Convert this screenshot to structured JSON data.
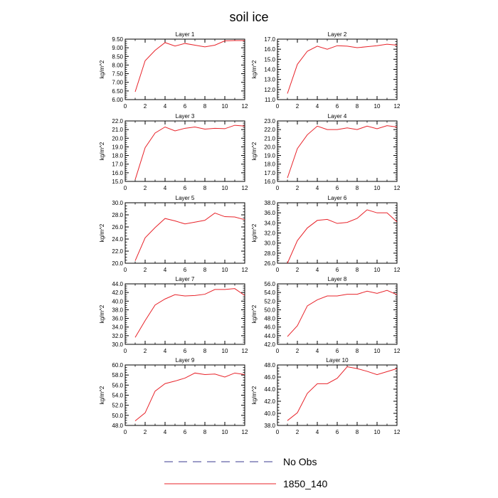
{
  "title": "soil ice",
  "legend": [
    {
      "label": "No Obs",
      "color": "#3b3b8f",
      "dash": true
    },
    {
      "label": "1850_140",
      "color": "#e8232a",
      "dash": false
    }
  ],
  "chart_data": [
    {
      "type": "line",
      "title": "Layer 1",
      "ylabel": "kg/m^2",
      "xlim": [
        0,
        12
      ],
      "ylim": [
        6.0,
        9.5
      ],
      "yticks": [
        "6.00",
        "6.50",
        "7.00",
        "7.50",
        "8.00",
        "8.50",
        "9.00",
        "9.50"
      ],
      "xticks": [
        "0",
        "2",
        "4",
        "6",
        "8",
        "10",
        "12"
      ],
      "series": [
        {
          "name": "1850_140",
          "x": [
            1,
            2,
            3,
            4,
            5,
            6,
            7,
            8,
            9,
            10,
            11,
            12
          ],
          "values": [
            6.45,
            8.25,
            8.85,
            9.3,
            9.1,
            9.25,
            9.15,
            9.05,
            9.15,
            9.4,
            9.42,
            9.42
          ]
        }
      ]
    },
    {
      "type": "line",
      "title": "Layer 2",
      "ylabel": "kg/m^2",
      "xlim": [
        0,
        12
      ],
      "ylim": [
        11.0,
        17.0
      ],
      "yticks": [
        "11.0",
        "12.0",
        "13.0",
        "14.0",
        "15.0",
        "16.0",
        "17.0"
      ],
      "xticks": [
        "0",
        "2",
        "4",
        "6",
        "8",
        "10",
        "12"
      ],
      "series": [
        {
          "name": "1850_140",
          "x": [
            1,
            2,
            3,
            4,
            5,
            6,
            7,
            8,
            9,
            10,
            11,
            12
          ],
          "values": [
            11.6,
            14.5,
            15.8,
            16.3,
            16.0,
            16.35,
            16.3,
            16.15,
            16.25,
            16.35,
            16.5,
            16.4
          ]
        }
      ]
    },
    {
      "type": "line",
      "title": "Layer 3",
      "ylabel": "kg/m^2",
      "xlim": [
        0,
        12
      ],
      "ylim": [
        15.0,
        22.0
      ],
      "yticks": [
        "15.0",
        "16.0",
        "17.0",
        "18.0",
        "19.0",
        "20.0",
        "21.0",
        "22.0"
      ],
      "xticks": [
        "0",
        "2",
        "4",
        "6",
        "8",
        "10",
        "12"
      ],
      "series": [
        {
          "name": "1850_140",
          "x": [
            1,
            2,
            3,
            4,
            5,
            6,
            7,
            8,
            9,
            10,
            11,
            12
          ],
          "values": [
            15.2,
            18.9,
            20.6,
            21.3,
            20.85,
            21.15,
            21.3,
            21.05,
            21.15,
            21.1,
            21.5,
            21.4
          ]
        }
      ]
    },
    {
      "type": "line",
      "title": "Layer 4",
      "ylabel": "kg/m^2",
      "xlim": [
        0,
        12
      ],
      "ylim": [
        16.0,
        23.0
      ],
      "yticks": [
        "16.0",
        "17.0",
        "18.0",
        "19.0",
        "20.0",
        "21.0",
        "22.0",
        "23.0"
      ],
      "xticks": [
        "0",
        "2",
        "4",
        "6",
        "8",
        "10",
        "12"
      ],
      "series": [
        {
          "name": "1850_140",
          "x": [
            1,
            2,
            3,
            4,
            5,
            6,
            7,
            8,
            9,
            10,
            11,
            12
          ],
          "values": [
            16.4,
            19.8,
            21.4,
            22.4,
            22.0,
            22.0,
            22.2,
            22.0,
            22.4,
            22.1,
            22.45,
            22.3
          ]
        }
      ]
    },
    {
      "type": "line",
      "title": "Layer 5",
      "ylabel": "kg/m^2",
      "xlim": [
        0,
        12
      ],
      "ylim": [
        20.0,
        30.0
      ],
      "yticks": [
        "20.0",
        "22.0",
        "24.0",
        "26.0",
        "28.0",
        "30.0"
      ],
      "xticks": [
        "0",
        "2",
        "4",
        "6",
        "8",
        "10",
        "12"
      ],
      "series": [
        {
          "name": "1850_140",
          "x": [
            1,
            2,
            3,
            4,
            5,
            6,
            7,
            8,
            9,
            10,
            11,
            12
          ],
          "values": [
            20.4,
            24.2,
            25.9,
            27.4,
            27.0,
            26.5,
            26.8,
            27.1,
            28.3,
            27.7,
            27.65,
            27.2
          ]
        }
      ]
    },
    {
      "type": "line",
      "title": "Layer 6",
      "ylabel": "kg/m^2",
      "xlim": [
        0,
        12
      ],
      "ylim": [
        26.0,
        38.0
      ],
      "yticks": [
        "26.0",
        "28.0",
        "30.0",
        "32.0",
        "34.0",
        "36.0",
        "38.0"
      ],
      "xticks": [
        "0",
        "2",
        "4",
        "6",
        "8",
        "10",
        "12"
      ],
      "series": [
        {
          "name": "1850_140",
          "x": [
            1,
            2,
            3,
            4,
            5,
            6,
            7,
            8,
            9,
            10,
            11,
            12
          ],
          "values": [
            26.0,
            30.5,
            33.0,
            34.5,
            34.7,
            33.9,
            34.1,
            34.9,
            36.6,
            36.0,
            36.0,
            34.2
          ]
        }
      ]
    },
    {
      "type": "line",
      "title": "Layer 7",
      "ylabel": "kg/m^2",
      "xlim": [
        0,
        12
      ],
      "ylim": [
        30.0,
        44.0
      ],
      "yticks": [
        "30.0",
        "32.0",
        "34.0",
        "36.0",
        "38.0",
        "40.0",
        "42.0",
        "44.0"
      ],
      "xticks": [
        "0",
        "2",
        "4",
        "6",
        "8",
        "10",
        "12"
      ],
      "series": [
        {
          "name": "1850_140",
          "x": [
            1,
            2,
            3,
            4,
            5,
            6,
            7,
            8,
            9,
            10,
            11,
            12
          ],
          "values": [
            31.6,
            35.5,
            39.1,
            40.5,
            41.5,
            41.2,
            41.3,
            41.6,
            42.7,
            42.7,
            42.9,
            41.3
          ]
        }
      ]
    },
    {
      "type": "line",
      "title": "Layer 8",
      "ylabel": "kg/m^2",
      "xlim": [
        0,
        12
      ],
      "ylim": [
        42.0,
        56.0
      ],
      "yticks": [
        "42.0",
        "44.0",
        "46.0",
        "48.0",
        "50.0",
        "52.0",
        "54.0",
        "56.0"
      ],
      "xticks": [
        "0",
        "2",
        "4",
        "6",
        "8",
        "10",
        "12"
      ],
      "series": [
        {
          "name": "1850_140",
          "x": [
            1,
            2,
            3,
            4,
            5,
            6,
            7,
            8,
            9,
            10,
            11,
            12
          ],
          "values": [
            43.8,
            46.3,
            50.9,
            52.3,
            53.2,
            53.2,
            53.6,
            53.6,
            54.3,
            53.8,
            54.5,
            53.5
          ]
        }
      ]
    },
    {
      "type": "line",
      "title": "Layer 9",
      "ylabel": "kg/m^2",
      "xlim": [
        0,
        12
      ],
      "ylim": [
        48.0,
        60.0
      ],
      "yticks": [
        "48.0",
        "50.0",
        "52.0",
        "54.0",
        "56.0",
        "58.0",
        "60.0"
      ],
      "xticks": [
        "0",
        "2",
        "4",
        "6",
        "8",
        "10",
        "12"
      ],
      "series": [
        {
          "name": "1850_140",
          "x": [
            1,
            2,
            3,
            4,
            5,
            6,
            7,
            8,
            9,
            10,
            11,
            12
          ],
          "values": [
            48.9,
            50.5,
            54.8,
            56.3,
            56.8,
            57.4,
            58.4,
            58.1,
            58.2,
            57.6,
            58.4,
            58.1
          ]
        }
      ]
    },
    {
      "type": "line",
      "title": "Layer 10",
      "ylabel": "kg/m^2",
      "xlim": [
        0,
        12
      ],
      "ylim": [
        38.0,
        48.0
      ],
      "yticks": [
        "38.0",
        "40.0",
        "42.0",
        "44.0",
        "46.0",
        "48.0"
      ],
      "xticks": [
        "0",
        "2",
        "4",
        "6",
        "8",
        "10",
        "12"
      ],
      "series": [
        {
          "name": "1850_140",
          "x": [
            1,
            2,
            3,
            4,
            5,
            6,
            7,
            8,
            9,
            10,
            11,
            12
          ],
          "values": [
            38.8,
            40.1,
            43.3,
            44.9,
            44.9,
            45.8,
            47.7,
            47.4,
            46.95,
            46.4,
            46.9,
            47.4
          ]
        }
      ]
    }
  ]
}
